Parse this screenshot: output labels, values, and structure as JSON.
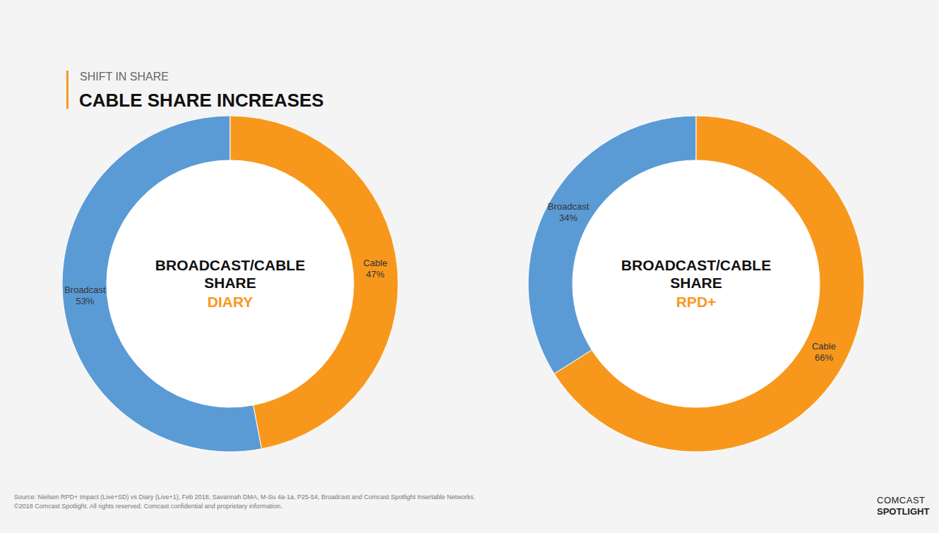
{
  "header": {
    "kicker": "SHIFT IN SHARE",
    "title": "CABLE SHARE INCREASES"
  },
  "chart_data": [
    {
      "type": "pie",
      "title": "BROADCAST/CABLE SHARE",
      "subtitle": "DIARY",
      "categories": [
        "Broadcast",
        "Cable"
      ],
      "values": [
        53,
        47
      ],
      "value_labels": [
        "53%",
        "47%"
      ],
      "colors": [
        "#5b9bd5",
        "#f7981d"
      ],
      "data_labels": true
    },
    {
      "type": "pie",
      "title": "BROADCAST/CABLE SHARE",
      "subtitle": "RPD+",
      "categories": [
        "Broadcast",
        "Cable"
      ],
      "values": [
        34,
        66
      ],
      "value_labels": [
        "34%",
        "66%"
      ],
      "colors": [
        "#5b9bd5",
        "#f7981d"
      ],
      "data_labels": true
    }
  ],
  "footer": {
    "source": "Source: Nielsen RPD+ Impact (Live+SD) vs Diary (Live+1), Feb 2018, Savannah DMA, M-Su 4a-1a, P25-54, Broadcast and Comcast Spotlight Insertable Networks.",
    "copyright": "©2018 Comcast Spotlight. All rights reserved. Comcast confidential and proprietary information."
  },
  "logo": {
    "line1": "COMCAST",
    "line2": "SPOTLIGHT"
  }
}
